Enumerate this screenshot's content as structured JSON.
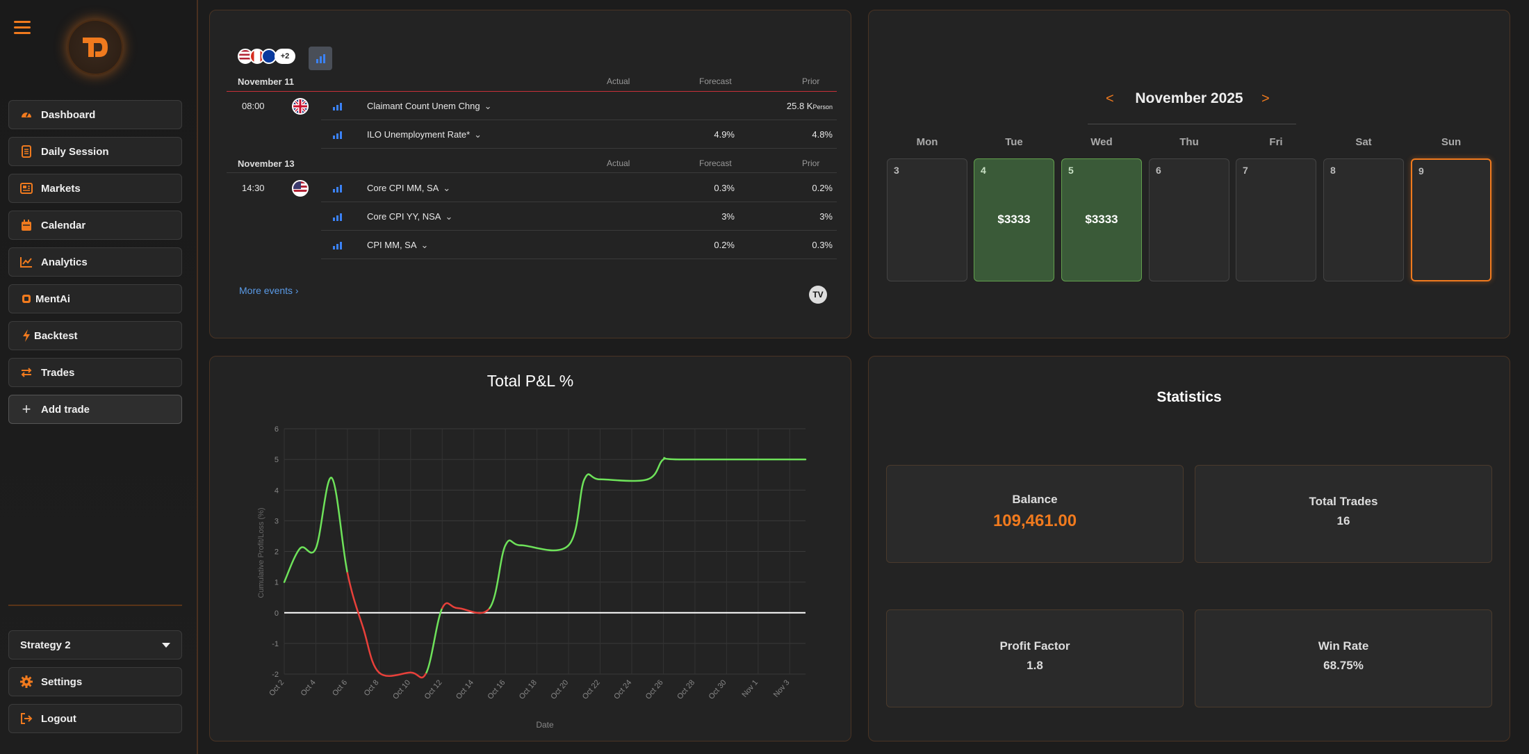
{
  "sidebar": {
    "items": [
      {
        "label": "Dashboard",
        "icon": "gauge-icon"
      },
      {
        "label": "Daily Session",
        "icon": "notebook-icon"
      },
      {
        "label": "Markets",
        "icon": "newspaper-icon"
      },
      {
        "label": "Calendar",
        "icon": "calendar-icon"
      },
      {
        "label": "Analytics",
        "icon": "chart-line-icon"
      },
      {
        "label": "MentAi",
        "icon": "chip-icon"
      },
      {
        "label": "Backtest",
        "icon": "bolt-icon"
      },
      {
        "label": "Trades",
        "icon": "swap-icon"
      }
    ],
    "add_trade": "Add trade",
    "strategy": "Strategy 2",
    "settings": "Settings",
    "logout": "Logout",
    "accent": "#f07a1e"
  },
  "econ": {
    "more_flags": "+2",
    "col_actual": "Actual",
    "col_forecast": "Forecast",
    "col_prior": "Prior",
    "groups": [
      {
        "date": "November 11",
        "events": [
          {
            "time": "08:00",
            "country": "uk",
            "name": "Claimant Count Unem Chng",
            "actual": "",
            "forecast": "",
            "prior": "25.8 K",
            "prior_unit": "Person"
          },
          {
            "time": "",
            "country": "",
            "name": "ILO Unemployment Rate*",
            "actual": "",
            "forecast": "4.9%",
            "prior": "4.8%"
          }
        ]
      },
      {
        "date": "November 13",
        "events": [
          {
            "time": "14:30",
            "country": "us",
            "name": "Core CPI MM, SA",
            "actual": "",
            "forecast": "0.3%",
            "prior": "0.2%"
          },
          {
            "time": "",
            "country": "",
            "name": "Core CPI YY, NSA",
            "actual": "",
            "forecast": "3%",
            "prior": "3%"
          },
          {
            "time": "",
            "country": "",
            "name": "CPI MM, SA",
            "actual": "",
            "forecast": "0.2%",
            "prior": "0.3%"
          }
        ]
      }
    ],
    "more_events": "More events  ›"
  },
  "calendar": {
    "month": "November 2025",
    "prev": "<",
    "next": ">",
    "weekdays": [
      "Mon",
      "Tue",
      "Wed",
      "Thu",
      "Fri",
      "Sat",
      "Sun"
    ],
    "days": [
      {
        "n": "3",
        "amount": ""
      },
      {
        "n": "4",
        "amount": "$3333"
      },
      {
        "n": "5",
        "amount": "$3333"
      },
      {
        "n": "6",
        "amount": ""
      },
      {
        "n": "7",
        "amount": ""
      },
      {
        "n": "8",
        "amount": ""
      },
      {
        "n": "9",
        "amount": ""
      }
    ]
  },
  "pnl": {
    "title": "Total P&L %",
    "chart_data": {
      "type": "line",
      "xlabel": "Date",
      "ylabel": "Cumulative Profit/Loss (%)",
      "ylim": [
        -2,
        6
      ],
      "yticks": [
        "-2",
        "-1",
        "0",
        "1",
        "2",
        "3",
        "4",
        "5",
        "6"
      ],
      "xticks": [
        "Oct 2",
        "Oct 4",
        "Oct 6",
        "Oct 8",
        "Oct 10",
        "Oct 12",
        "Oct 14",
        "Oct 16",
        "Oct 18",
        "Oct 20",
        "Oct 22",
        "Oct 24",
        "Oct 26",
        "Oct 28",
        "Oct 30",
        "Nov 1",
        "Nov 3"
      ],
      "x_range": [
        "2025-10-02",
        "2025-11-04"
      ],
      "series": [
        {
          "x": [
            "2025-10-02",
            "2025-10-03",
            "2025-10-04",
            "2025-10-05",
            "2025-10-06",
            "2025-10-07",
            "2025-10-08",
            "2025-10-10",
            "2025-10-11",
            "2025-10-12",
            "2025-10-13",
            "2025-10-15",
            "2025-10-16",
            "2025-10-17",
            "2025-10-20",
            "2025-10-21",
            "2025-10-22",
            "2025-10-25",
            "2025-10-26",
            "2025-10-27",
            "2025-11-04"
          ],
          "values": [
            1.0,
            2.1,
            2.1,
            4.4,
            1.3,
            -0.5,
            -1.95,
            -1.95,
            -1.95,
            0.15,
            0.15,
            0.15,
            2.2,
            2.2,
            2.2,
            4.35,
            4.35,
            4.35,
            5.0,
            5.0,
            5.0
          ]
        }
      ],
      "zero_line": true,
      "grid": true,
      "positive_color": "#6ee25a",
      "negative_color": "#e8403a"
    }
  },
  "stats": {
    "title": "Statistics",
    "balance_label": "Balance",
    "balance_value": "109,461.00",
    "trades_label": "Total Trades",
    "trades_value": "16",
    "pf_label": "Profit Factor",
    "pf_value": "1.8",
    "wr_label": "Win Rate",
    "wr_value": "68.75%"
  }
}
